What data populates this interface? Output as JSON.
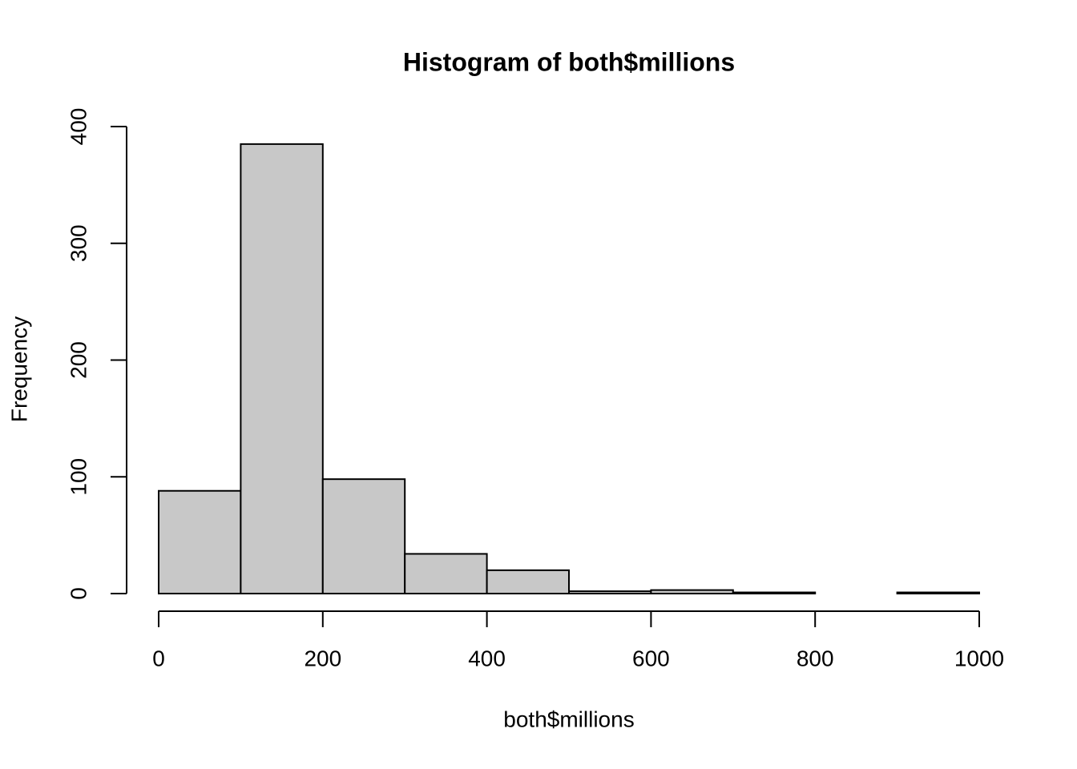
{
  "chart_data": {
    "type": "histogram",
    "title": "Histogram of both$millions",
    "x_label": "both$millions",
    "y_label": "Frequency",
    "bins": [
      0,
      100,
      200,
      300,
      400,
      500,
      600,
      700,
      800,
      900,
      1000
    ],
    "values": [
      88,
      385,
      98,
      34,
      20,
      2,
      3,
      1,
      0,
      1
    ],
    "color": "#c8c8c8",
    "edge_color": "#000000",
    "xlim": [
      0,
      1000
    ],
    "xticks": [
      0,
      200,
      400,
      600,
      800,
      1000
    ],
    "ylim": [
      0,
      400
    ],
    "yticks": [
      0,
      100,
      200,
      300,
      400
    ]
  }
}
